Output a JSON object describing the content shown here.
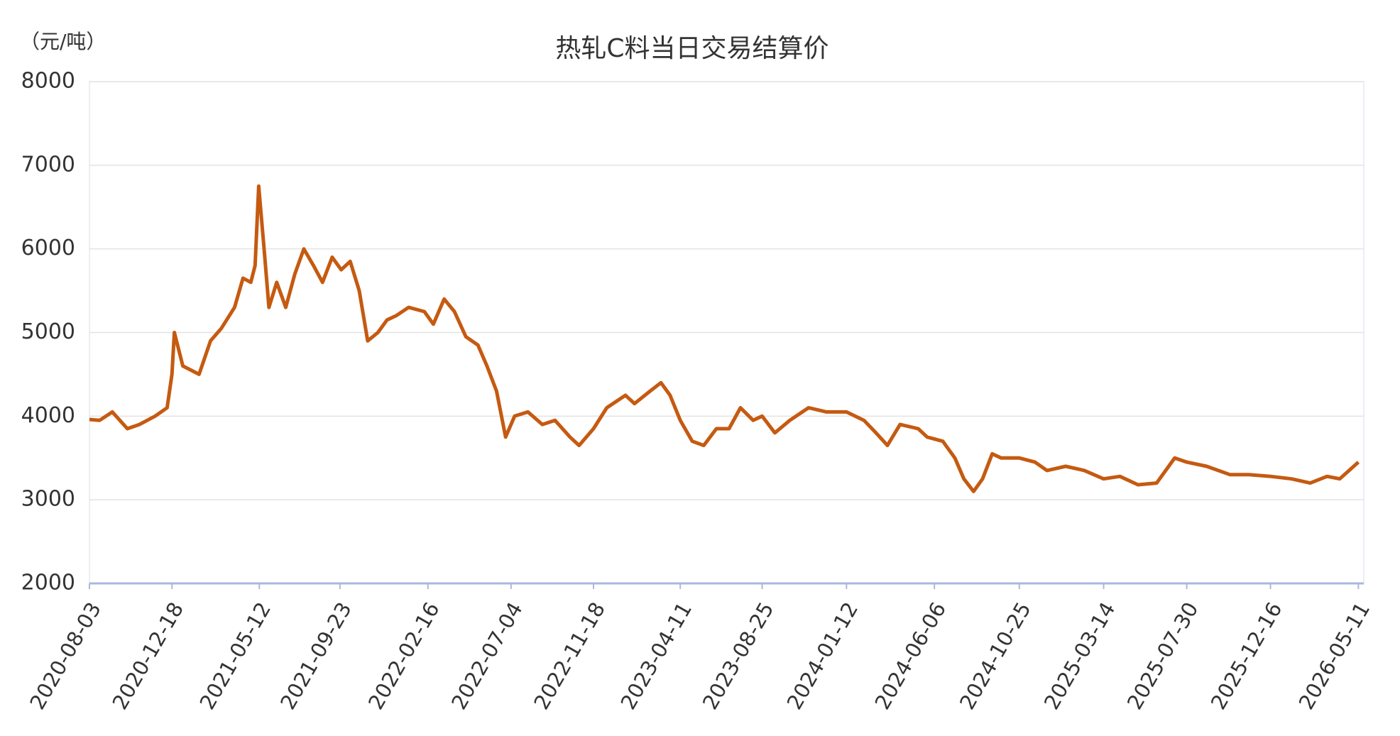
{
  "chart_data": {
    "type": "line",
    "title": "热轧C料当日交易结算价",
    "y_label": "（元/吨）",
    "x": [
      "2020-08-03",
      "2020-08-20",
      "2020-09-10",
      "2020-10-05",
      "2020-10-25",
      "2020-11-20",
      "2020-12-10",
      "2020-12-18",
      "2020-12-22",
      "2021-01-05",
      "2021-02-01",
      "2021-02-20",
      "2021-03-10",
      "2021-04-01",
      "2021-04-15",
      "2021-04-28",
      "2021-05-05",
      "2021-05-11",
      "2021-05-20",
      "2021-05-28",
      "2021-06-10",
      "2021-06-25",
      "2021-07-10",
      "2021-07-25",
      "2021-08-10",
      "2021-08-25",
      "2021-09-10",
      "2021-09-25",
      "2021-10-10",
      "2021-10-25",
      "2021-11-08",
      "2021-11-25",
      "2021-12-10",
      "2021-12-25",
      "2022-01-15",
      "2022-02-10",
      "2022-02-25",
      "2022-03-15",
      "2022-04-01",
      "2022-04-20",
      "2022-05-10",
      "2022-05-25",
      "2022-06-10",
      "2022-06-25",
      "2022-07-10",
      "2022-08-01",
      "2022-08-25",
      "2022-09-15",
      "2022-10-10",
      "2022-10-25",
      "2022-11-18",
      "2022-12-10",
      "2023-01-10",
      "2023-01-25",
      "2023-02-20",
      "2023-03-10",
      "2023-03-25",
      "2023-04-11",
      "2023-05-01",
      "2023-05-20",
      "2023-06-10",
      "2023-07-01",
      "2023-07-20",
      "2023-08-10",
      "2023-08-25",
      "2023-09-15",
      "2023-10-10",
      "2023-11-10",
      "2023-12-10",
      "2024-01-12",
      "2024-02-10",
      "2024-03-01",
      "2024-03-20",
      "2024-04-10",
      "2024-05-10",
      "2024-05-25",
      "2024-06-20",
      "2024-07-10",
      "2024-07-25",
      "2024-08-10",
      "2024-08-25",
      "2024-09-10",
      "2024-09-25",
      "2024-10-25",
      "2024-11-20",
      "2024-12-10",
      "2025-01-10",
      "2025-02-10",
      "2025-03-14",
      "2025-04-10",
      "2025-05-10",
      "2025-06-10",
      "2025-07-10",
      "2025-07-30",
      "2025-09-01",
      "2025-10-10",
      "2025-11-10",
      "2025-12-16",
      "2026-01-20",
      "2026-02-20",
      "2026-03-20",
      "2026-04-10",
      "2026-05-11"
    ],
    "series": [
      {
        "name": "热轧C料当日交易结算价",
        "color": "#c55a11",
        "values": [
          3960,
          3950,
          4050,
          3850,
          3900,
          4000,
          4100,
          4500,
          5000,
          4600,
          4500,
          4900,
          5050,
          5300,
          5650,
          5600,
          5800,
          6750,
          6000,
          5300,
          5600,
          5300,
          5700,
          6000,
          5800,
          5600,
          5900,
          5750,
          5850,
          5500,
          4900,
          5000,
          5150,
          5200,
          5300,
          5250,
          5100,
          5400,
          5250,
          4950,
          4850,
          4600,
          4300,
          3750,
          4000,
          4050,
          3900,
          3950,
          3750,
          3650,
          3850,
          4100,
          4250,
          4150,
          4300,
          4400,
          4250,
          3950,
          3700,
          3650,
          3850,
          3850,
          4100,
          3950,
          4000,
          3800,
          3950,
          4100,
          4050,
          4050,
          3950,
          3800,
          3650,
          3900,
          3850,
          3750,
          3700,
          3500,
          3250,
          3100,
          3250,
          3550,
          3500,
          3500,
          3450,
          3350,
          3400,
          3350,
          3250,
          3280,
          3180,
          3200,
          3500,
          3450,
          3400,
          3300,
          3300,
          3280,
          3250,
          3200,
          3280,
          3250,
          3450
        ]
      }
    ],
    "xlim": [
      "2020-08-03",
      "2026-05-20"
    ],
    "xticks": [
      "2020-08-03",
      "2020-12-18",
      "2021-05-12",
      "2021-09-23",
      "2022-02-16",
      "2022-07-04",
      "2022-11-18",
      "2023-04-11",
      "2023-08-25",
      "2024-01-12",
      "2024-06-06",
      "2024-10-25",
      "2025-03-14",
      "2025-07-30",
      "2025-12-16",
      "2026-05-11"
    ],
    "ylim": [
      2000,
      8000
    ],
    "yticks": [
      2000,
      3000,
      4000,
      5000,
      6000,
      7000,
      8000
    ],
    "grid": true
  }
}
